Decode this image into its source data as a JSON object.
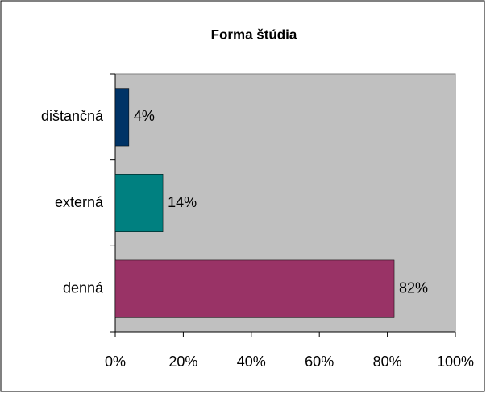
{
  "chart_data": {
    "type": "bar",
    "orientation": "horizontal",
    "title": "Forma štúdia",
    "categories": [
      "dištančná",
      "externá",
      "denná"
    ],
    "values": [
      4,
      14,
      82
    ],
    "value_labels": [
      "4%",
      "14%",
      "82%"
    ],
    "colors": [
      "#003366",
      "#008080",
      "#993366"
    ],
    "xlim": [
      0,
      100
    ],
    "xticks": [
      {
        "value": 0,
        "label": "0%"
      },
      {
        "value": 20,
        "label": "20%"
      },
      {
        "value": 40,
        "label": "40%"
      },
      {
        "value": 60,
        "label": "60%"
      },
      {
        "value": 80,
        "label": "80%"
      },
      {
        "value": 100,
        "label": "100%"
      }
    ],
    "grid": false
  }
}
